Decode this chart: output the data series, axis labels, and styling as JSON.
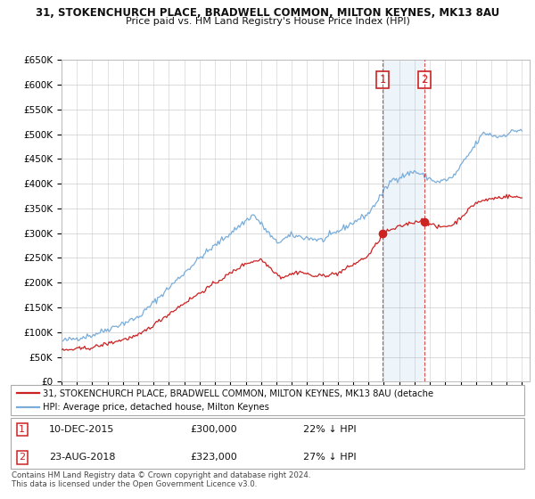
{
  "title1": "31, STOKENCHURCH PLACE, BRADWELL COMMON, MILTON KEYNES, MK13 8AU",
  "title2": "Price paid vs. HM Land Registry's House Price Index (HPI)",
  "ylim": [
    0,
    650000
  ],
  "yticks": [
    0,
    50000,
    100000,
    150000,
    200000,
    250000,
    300000,
    350000,
    400000,
    450000,
    500000,
    550000,
    600000,
    650000
  ],
  "ytick_labels": [
    "£0",
    "£50K",
    "£100K",
    "£150K",
    "£200K",
    "£250K",
    "£300K",
    "£350K",
    "£400K",
    "£450K",
    "£500K",
    "£550K",
    "£600K",
    "£650K"
  ],
  "hpi_color": "#7aadda",
  "price_color": "#cc2222",
  "transaction1_date": 2015.94,
  "transaction1_price": 300000,
  "transaction2_date": 2018.65,
  "transaction2_price": 323000,
  "legend_line1": "31, STOKENCHURCH PLACE, BRADWELL COMMON, MILTON KEYNES, MK13 8AU (detache",
  "legend_line2": "HPI: Average price, detached house, Milton Keynes",
  "footer": "Contains HM Land Registry data © Crown copyright and database right 2024.\nThis data is licensed under the Open Government Licence v3.0.",
  "bg_color": "#ffffff",
  "grid_color": "#cccccc",
  "title_fontsize": 8.5,
  "subtitle_fontsize": 8,
  "tick_fontsize": 7.5
}
